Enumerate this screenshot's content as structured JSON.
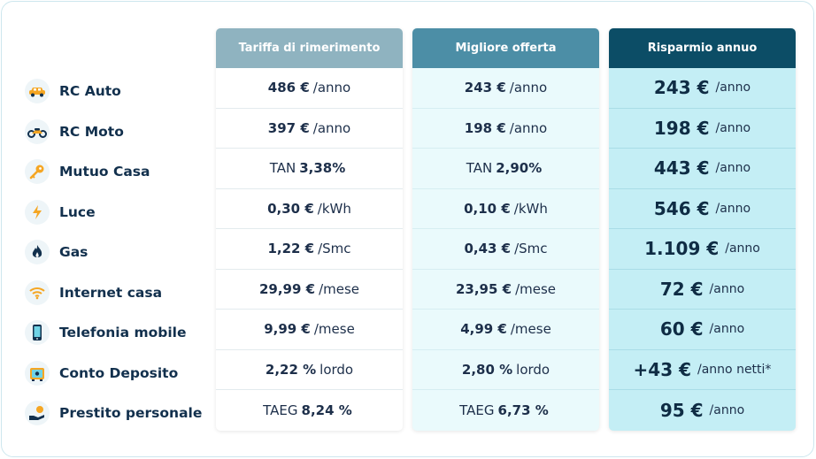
{
  "headers": {
    "reference": "Tariffa di rimerimento",
    "best": "Migliore offerta",
    "saving": "Risparmio annuo"
  },
  "rows": [
    {
      "label": "RC  Auto",
      "icon": "car-icon",
      "ref": {
        "prefix": "",
        "value": "486 €",
        "unit": "/anno"
      },
      "best": {
        "prefix": "",
        "value": "243 €",
        "unit": "/anno"
      },
      "saving": {
        "value": "243 €",
        "unit": "/anno"
      }
    },
    {
      "label": "RC  Moto",
      "icon": "motorcycle-icon",
      "ref": {
        "prefix": "",
        "value": "397 €",
        "unit": "/anno"
      },
      "best": {
        "prefix": "",
        "value": "198 €",
        "unit": "/anno"
      },
      "saving": {
        "value": "198 €",
        "unit": "/anno"
      }
    },
    {
      "label": "Mutuo Casa",
      "icon": "house-key-icon",
      "ref": {
        "prefix": "TAN",
        "value": "3,38%",
        "unit": ""
      },
      "best": {
        "prefix": "TAN",
        "value": "2,90%",
        "unit": ""
      },
      "saving": {
        "value": "443 €",
        "unit": "/anno"
      }
    },
    {
      "label": "Luce",
      "icon": "lightning-icon",
      "ref": {
        "prefix": "",
        "value": "0,30 €",
        "unit": "/kWh"
      },
      "best": {
        "prefix": "",
        "value": "0,10 €",
        "unit": "/kWh"
      },
      "saving": {
        "value": "546 €",
        "unit": "/anno"
      }
    },
    {
      "label": "Gas",
      "icon": "flame-icon",
      "ref": {
        "prefix": "",
        "value": "1,22 €",
        "unit": "/Smc"
      },
      "best": {
        "prefix": "",
        "value": "0,43 €",
        "unit": "/Smc"
      },
      "saving": {
        "value": "1.109 €",
        "unit": "/anno"
      }
    },
    {
      "label": "Internet casa",
      "icon": "wifi-icon",
      "ref": {
        "prefix": "",
        "value": "29,99 €",
        "unit": "/mese"
      },
      "best": {
        "prefix": "",
        "value": "23,95 €",
        "unit": "/mese"
      },
      "saving": {
        "value": "72 €",
        "unit": "/anno"
      }
    },
    {
      "label": "Telefonia mobile",
      "icon": "smartphone-icon",
      "ref": {
        "prefix": "",
        "value": "9,99 €",
        "unit": "/mese"
      },
      "best": {
        "prefix": "",
        "value": "4,99 €",
        "unit": "/mese"
      },
      "saving": {
        "value": "60 €",
        "unit": "/anno"
      }
    },
    {
      "label": "Conto Deposito",
      "icon": "piggy-bank-icon",
      "ref": {
        "prefix": "",
        "value": "2,22 %",
        "unit": "lordo"
      },
      "best": {
        "prefix": "",
        "value": "2,80 %",
        "unit": "lordo"
      },
      "saving": {
        "value": "+43 €",
        "unit": "/anno netti*"
      }
    },
    {
      "label": "Prestito personale",
      "icon": "hand-coin-icon",
      "ref": {
        "prefix": "TAEG",
        "value": "8,24 %",
        "unit": ""
      },
      "best": {
        "prefix": "TAEG",
        "value": "6,73 %",
        "unit": ""
      },
      "saving": {
        "value": "95 €",
        "unit": "/anno"
      }
    }
  ],
  "colors": {
    "header_reference": "#8fb3c0",
    "header_best": "#4c8ea6",
    "header_saving": "#0c4d66",
    "column_best_bg": "#eafafc",
    "column_saving_bg": "#c4eef5",
    "text_dark": "#12304d",
    "icon_accent": "#f5a623"
  }
}
